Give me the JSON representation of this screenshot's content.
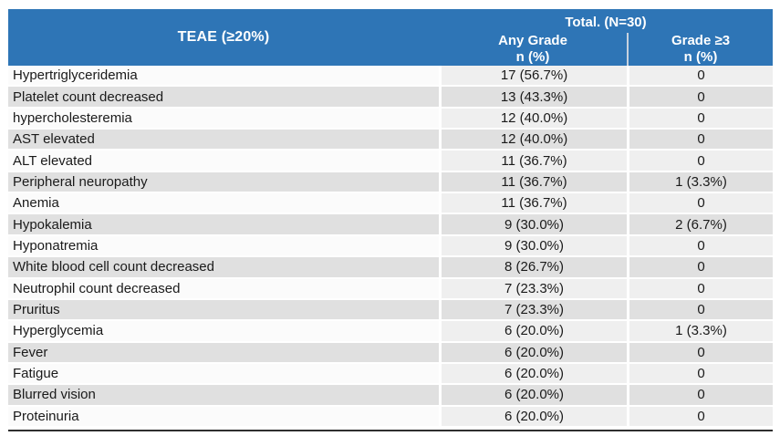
{
  "table": {
    "col1_header": "TEAE (≥20%)",
    "total_header": "Total. (N=30)",
    "col2_header": {
      "line1": "Any Grade",
      "line2": "n (%)"
    },
    "col3_header": {
      "line1": "Grade ≥3",
      "line2": "n (%)"
    },
    "rows": [
      {
        "teae": "Hypertriglyceridemia",
        "any_grade": "17 (56.7%)",
        "grade3": "0"
      },
      {
        "teae": "Platelet count decreased",
        "any_grade": "13 (43.3%)",
        "grade3": "0"
      },
      {
        "teae": "hypercholesteremia",
        "any_grade": "12 (40.0%)",
        "grade3": "0"
      },
      {
        "teae": "AST elevated",
        "any_grade": "12 (40.0%)",
        "grade3": "0"
      },
      {
        "teae": "ALT elevated",
        "any_grade": "11 (36.7%)",
        "grade3": "0"
      },
      {
        "teae": "Peripheral neuropathy",
        "any_grade": "11 (36.7%)",
        "grade3": "1 (3.3%)"
      },
      {
        "teae": "Anemia",
        "any_grade": "11 (36.7%)",
        "grade3": "0"
      },
      {
        "teae": "Hypokalemia",
        "any_grade": "9 (30.0%)",
        "grade3": "2 (6.7%)"
      },
      {
        "teae": "Hyponatremia",
        "any_grade": "9 (30.0%)",
        "grade3": "0"
      },
      {
        "teae": "White blood cell count decreased",
        "any_grade": "8 (26.7%)",
        "grade3": "0"
      },
      {
        "teae": "Neutrophil count decreased",
        "any_grade": "7 (23.3%)",
        "grade3": "0"
      },
      {
        "teae": "Pruritus",
        "any_grade": "7 (23.3%)",
        "grade3": "0"
      },
      {
        "teae": "Hyperglycemia",
        "any_grade": "6 (20.0%)",
        "grade3": "1 (3.3%)"
      },
      {
        "teae": "Fever",
        "any_grade": "6 (20.0%)",
        "grade3": "0"
      },
      {
        "teae": "Fatigue",
        "any_grade": "6 (20.0%)",
        "grade3": "0"
      },
      {
        "teae": "Blurred vision",
        "any_grade": "6 (20.0%)",
        "grade3": "0"
      },
      {
        "teae": "Proteinuria",
        "any_grade": "6 (20.0%)",
        "grade3": "0"
      }
    ]
  },
  "colors": {
    "header_bg": "#2E75B6",
    "header_text": "#FFFFFF",
    "header_divider": "#C6D1DE",
    "row_odd_name_bg": "#FBFBFB",
    "row_odd_value_bg": "#EFEFEF",
    "row_even_bg": "#E0E0E0",
    "body_text": "#1A1A1A",
    "bottom_rule": "#2F2F2F"
  }
}
